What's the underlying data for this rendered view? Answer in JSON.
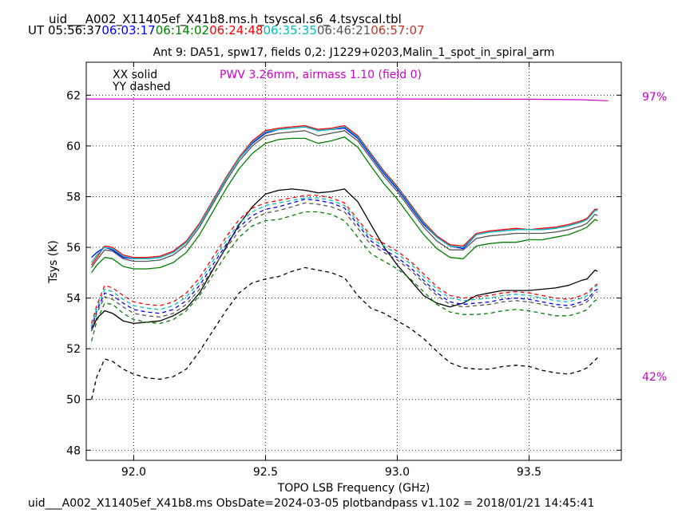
{
  "header": {
    "filename": "uid___A002_X11405ef_X41b8.ms.h_tsyscal.s6_4.tsyscal.tbl",
    "ut_label": "UT",
    "times": [
      {
        "text": "05:56:37",
        "color": "#000000"
      },
      {
        "text": "06:03:17",
        "color": "#0000ff"
      },
      {
        "text": "06:14:02",
        "color": "#007f00"
      },
      {
        "text": "06:24:48",
        "color": "#ff0000"
      },
      {
        "text": "06:35:35",
        "color": "#00bfbf"
      },
      {
        "text": "06:46:21",
        "color": "#555555"
      },
      {
        "text": "06:57:07",
        "color": "#c0392b"
      }
    ]
  },
  "footer": {
    "text": "uid___A002_X11405ef_X41b8.ms  ObsDate=2024-03-05   plotbandpass v1.102 = 2018/01/21 14:45:41"
  },
  "chart_data": {
    "type": "line",
    "title": "Ant 9: DA51,  spw17,  fields 0,2: J1229+0203,Malin_1_spot_in_spiral_arm",
    "xlabel": "TOPO LSB Frequency (GHz)",
    "ylabel": "Tsys (K)",
    "xlim": [
      91.82,
      93.85
    ],
    "ylim": [
      47.6,
      63.3
    ],
    "xticks": [
      92.0,
      92.5,
      93.0,
      93.5
    ],
    "xtick_labels": [
      "92.0",
      "92.5",
      "93.0",
      "93.5"
    ],
    "yticks": [
      48,
      50,
      52,
      54,
      56,
      58,
      60,
      62
    ],
    "ytick_labels": [
      "48",
      "50",
      "52",
      "54",
      "56",
      "58",
      "60",
      "62"
    ],
    "grid": true,
    "legend": {
      "solid": "XX solid",
      "dashed": "YY dashed"
    },
    "annotation": {
      "text": "PWV 3.26mm, airmass 1.10 (field 0)",
      "color": "#cc00cc"
    },
    "right_labels": [
      {
        "text": "97%",
        "color": "#cc00cc"
      },
      {
        "text": "42%",
        "color": "#cc00cc"
      }
    ],
    "transmission": {
      "color": "#cc00cc",
      "x": [
        91.82,
        92.5,
        93.0,
        93.5,
        93.7,
        93.8
      ],
      "y": [
        61.85,
        61.85,
        61.85,
        61.84,
        61.82,
        61.78
      ]
    },
    "x": [
      91.84,
      91.86,
      91.89,
      91.92,
      91.96,
      92.0,
      92.05,
      92.1,
      92.15,
      92.2,
      92.25,
      92.3,
      92.35,
      92.4,
      92.45,
      92.5,
      92.55,
      92.6,
      92.65,
      92.7,
      92.75,
      92.8,
      92.85,
      92.9,
      92.95,
      93.0,
      93.05,
      93.1,
      93.15,
      93.2,
      93.25,
      93.3,
      93.35,
      93.4,
      93.45,
      93.5,
      93.55,
      93.6,
      93.65,
      93.7,
      93.72,
      93.75,
      93.76
    ],
    "series": [
      {
        "color": "#000000",
        "style": "solid",
        "values": [
          52.7,
          53.2,
          53.5,
          53.4,
          53.1,
          53.0,
          53.05,
          53.1,
          53.3,
          53.6,
          54.2,
          55.1,
          56.0,
          56.9,
          57.6,
          58.1,
          58.25,
          58.3,
          58.25,
          58.15,
          58.2,
          58.3,
          57.8,
          56.9,
          56.0,
          55.3,
          54.7,
          54.1,
          53.8,
          53.65,
          53.8,
          54.1,
          54.2,
          54.3,
          54.3,
          54.3,
          54.35,
          54.4,
          54.5,
          54.7,
          54.75,
          55.1,
          55.05
        ]
      },
      {
        "color": "#0000ff",
        "style": "solid",
        "values": [
          55.6,
          55.8,
          56.0,
          55.9,
          55.6,
          55.55,
          55.55,
          55.6,
          55.8,
          56.2,
          56.9,
          57.8,
          58.7,
          59.5,
          60.1,
          60.5,
          60.65,
          60.7,
          60.75,
          60.6,
          60.65,
          60.7,
          60.3,
          59.6,
          58.9,
          58.3,
          57.6,
          56.9,
          56.4,
          56.05,
          55.95,
          56.5,
          56.6,
          56.65,
          56.7,
          56.7,
          56.7,
          56.75,
          56.85,
          57.0,
          57.1,
          57.45,
          57.45
        ]
      },
      {
        "color": "#007f00",
        "style": "solid",
        "values": [
          55.0,
          55.3,
          55.6,
          55.55,
          55.25,
          55.15,
          55.15,
          55.2,
          55.4,
          55.8,
          56.5,
          57.4,
          58.3,
          59.1,
          59.7,
          60.1,
          60.25,
          60.3,
          60.3,
          60.1,
          60.2,
          60.35,
          59.95,
          59.2,
          58.5,
          57.9,
          57.2,
          56.5,
          55.95,
          55.6,
          55.55,
          56.05,
          56.15,
          56.2,
          56.2,
          56.3,
          56.3,
          56.4,
          56.5,
          56.7,
          56.8,
          57.1,
          57.05
        ]
      },
      {
        "color": "#ff0000",
        "style": "solid",
        "values": [
          55.3,
          55.6,
          56.05,
          56.0,
          55.7,
          55.6,
          55.6,
          55.65,
          55.85,
          56.25,
          56.95,
          57.85,
          58.75,
          59.55,
          60.2,
          60.6,
          60.7,
          60.75,
          60.8,
          60.65,
          60.7,
          60.8,
          60.4,
          59.7,
          59.0,
          58.4,
          57.7,
          57.0,
          56.45,
          56.1,
          56.05,
          56.55,
          56.65,
          56.7,
          56.75,
          56.7,
          56.75,
          56.8,
          56.9,
          57.05,
          57.15,
          57.5,
          57.5
        ]
      },
      {
        "color": "#00bfbf",
        "style": "solid",
        "values": [
          55.4,
          55.7,
          56.0,
          55.95,
          55.65,
          55.55,
          55.55,
          55.6,
          55.8,
          56.2,
          56.9,
          57.8,
          58.7,
          59.5,
          60.15,
          60.55,
          60.65,
          60.7,
          60.75,
          60.6,
          60.65,
          60.75,
          60.35,
          59.65,
          58.95,
          58.35,
          57.65,
          56.95,
          56.4,
          56.05,
          56.0,
          56.5,
          56.6,
          56.65,
          56.7,
          56.7,
          56.7,
          56.75,
          56.85,
          57.0,
          57.1,
          57.45,
          57.45
        ]
      },
      {
        "color": "#555555",
        "style": "solid",
        "values": [
          55.2,
          55.5,
          55.9,
          55.85,
          55.55,
          55.45,
          55.45,
          55.5,
          55.7,
          56.1,
          56.8,
          57.7,
          58.6,
          59.4,
          60.0,
          60.4,
          60.5,
          60.55,
          60.6,
          60.4,
          60.5,
          60.6,
          60.2,
          59.5,
          58.8,
          58.2,
          57.5,
          56.8,
          56.25,
          55.9,
          55.9,
          56.35,
          56.45,
          56.5,
          56.55,
          56.55,
          56.55,
          56.6,
          56.7,
          56.85,
          56.95,
          57.3,
          57.25
        ]
      },
      {
        "color": "#000000",
        "style": "dashed",
        "values": [
          50.0,
          50.9,
          51.6,
          51.5,
          51.2,
          51.0,
          50.85,
          50.8,
          50.9,
          51.2,
          51.9,
          52.7,
          53.5,
          54.2,
          54.6,
          54.75,
          54.85,
          55.05,
          55.2,
          55.1,
          55.0,
          54.8,
          54.1,
          53.6,
          53.4,
          53.1,
          52.8,
          52.4,
          51.9,
          51.45,
          51.25,
          51.2,
          51.2,
          51.3,
          51.35,
          51.3,
          51.15,
          51.05,
          51.0,
          51.15,
          51.25,
          51.55,
          51.65
        ]
      },
      {
        "color": "#0000ff",
        "style": "dashed",
        "values": [
          52.8,
          53.5,
          54.2,
          54.1,
          53.8,
          53.55,
          53.45,
          53.4,
          53.55,
          53.9,
          54.5,
          55.3,
          56.1,
          56.8,
          57.25,
          57.5,
          57.6,
          57.75,
          57.9,
          57.85,
          57.75,
          57.55,
          56.9,
          56.25,
          55.9,
          55.6,
          55.2,
          54.7,
          54.2,
          53.85,
          53.75,
          53.8,
          53.85,
          53.95,
          54.0,
          53.95,
          53.85,
          53.75,
          53.7,
          53.85,
          53.95,
          54.3,
          54.35
        ]
      },
      {
        "color": "#007f00",
        "style": "dashed",
        "values": [
          52.3,
          53.1,
          53.8,
          53.75,
          53.4,
          53.15,
          53.05,
          53.0,
          53.15,
          53.5,
          54.1,
          54.9,
          55.7,
          56.4,
          56.85,
          57.05,
          57.1,
          57.25,
          57.4,
          57.4,
          57.3,
          57.05,
          56.4,
          55.75,
          55.45,
          55.15,
          54.75,
          54.25,
          53.75,
          53.45,
          53.35,
          53.35,
          53.4,
          53.5,
          53.55,
          53.5,
          53.4,
          53.3,
          53.3,
          53.45,
          53.55,
          53.9,
          53.95
        ]
      },
      {
        "color": "#ff0000",
        "style": "dashed",
        "values": [
          53.0,
          53.7,
          54.5,
          54.4,
          54.1,
          53.85,
          53.75,
          53.7,
          53.85,
          54.2,
          54.8,
          55.6,
          56.4,
          57.1,
          57.55,
          57.75,
          57.85,
          57.95,
          58.05,
          58.05,
          57.95,
          57.75,
          57.1,
          56.45,
          56.15,
          55.85,
          55.45,
          54.95,
          54.45,
          54.1,
          54.0,
          54.05,
          54.1,
          54.2,
          54.25,
          54.2,
          54.1,
          54.0,
          53.95,
          54.1,
          54.2,
          54.5,
          54.55
        ]
      },
      {
        "color": "#00bfbf",
        "style": "dashed",
        "values": [
          52.9,
          53.6,
          54.35,
          54.25,
          53.95,
          53.7,
          53.6,
          53.55,
          53.7,
          54.05,
          54.65,
          55.45,
          56.25,
          56.95,
          57.4,
          57.65,
          57.75,
          57.85,
          57.95,
          57.95,
          57.85,
          57.65,
          57.0,
          56.35,
          56.05,
          55.75,
          55.35,
          54.85,
          54.35,
          54.0,
          53.9,
          53.95,
          54.0,
          54.1,
          54.15,
          54.1,
          54.0,
          53.9,
          53.85,
          54.0,
          54.1,
          54.45,
          54.5
        ]
      },
      {
        "color": "#555555",
        "style": "dashed",
        "values": [
          52.7,
          53.4,
          54.05,
          53.95,
          53.65,
          53.4,
          53.3,
          53.25,
          53.4,
          53.75,
          54.35,
          55.15,
          55.95,
          56.65,
          57.1,
          57.35,
          57.45,
          57.6,
          57.75,
          57.7,
          57.6,
          57.4,
          56.75,
          56.1,
          55.8,
          55.5,
          55.1,
          54.6,
          54.1,
          53.75,
          53.65,
          53.7,
          53.75,
          53.85,
          53.9,
          53.85,
          53.75,
          53.65,
          53.6,
          53.75,
          53.85,
          54.2,
          54.25
        ]
      }
    ]
  }
}
